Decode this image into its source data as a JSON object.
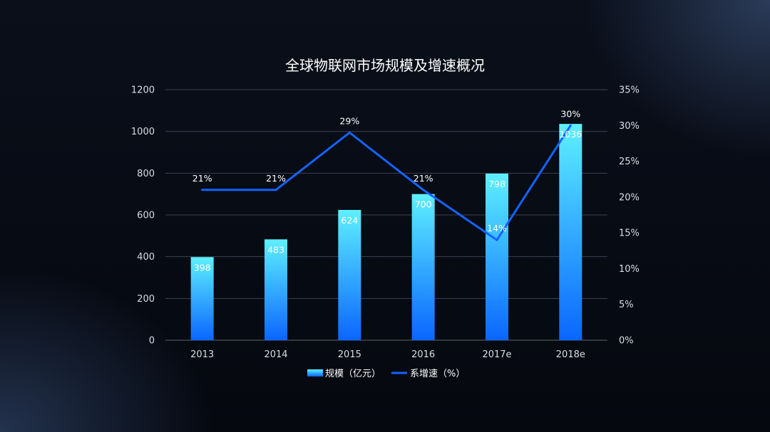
{
  "chart_data": {
    "type": "bar",
    "title": "全球物联网市场规模及增速概况",
    "categories": [
      "2013",
      "2014",
      "2015",
      "2016",
      "2017e",
      "2018e"
    ],
    "series": [
      {
        "name": "规模（亿元）",
        "type": "bar",
        "axis": "left",
        "values": [
          398,
          483,
          624,
          700,
          798,
          1036
        ],
        "labels": [
          "398",
          "483",
          "624",
          "700",
          "798",
          "1036"
        ],
        "color_top": "#5ef0ff",
        "color_bottom": "#0a66ff"
      },
      {
        "name": "系增速（%）",
        "type": "line",
        "axis": "right",
        "values": [
          21,
          21,
          29,
          21,
          14,
          30
        ],
        "labels": [
          "21%",
          "21%",
          "29%",
          "21%",
          "14%",
          "30%"
        ],
        "color": "#1463ff"
      }
    ],
    "y_left": {
      "ylim": [
        0,
        1200
      ],
      "ticks": [
        "0",
        "200",
        "400",
        "600",
        "800",
        "1000",
        "1200"
      ]
    },
    "y_right": {
      "ylim": [
        0,
        35
      ],
      "ticks": [
        "0%",
        "5%",
        "10%",
        "15%",
        "20%",
        "25%",
        "30%",
        "35%"
      ]
    },
    "grid": true,
    "legend_position": "bottom-center"
  }
}
